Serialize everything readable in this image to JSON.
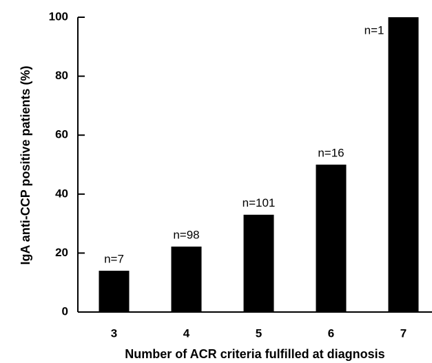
{
  "chart_data": {
    "type": "bar",
    "x_label": "Number of ACR criteria fulfilled at diagnosis",
    "y_label": "IgA anti-CCP positive patients (%)",
    "categories": [
      "3",
      "4",
      "5",
      "6",
      "7"
    ],
    "values": [
      14,
      22.2,
      33,
      50,
      100
    ],
    "annotations": [
      "n=7",
      "n=98",
      "n=101",
      "n=16",
      "n=1"
    ],
    "color": "#000000",
    "ylim": [
      0,
      100
    ],
    "yticks": [
      0,
      20,
      40,
      60,
      80,
      100
    ],
    "grid": false
  }
}
